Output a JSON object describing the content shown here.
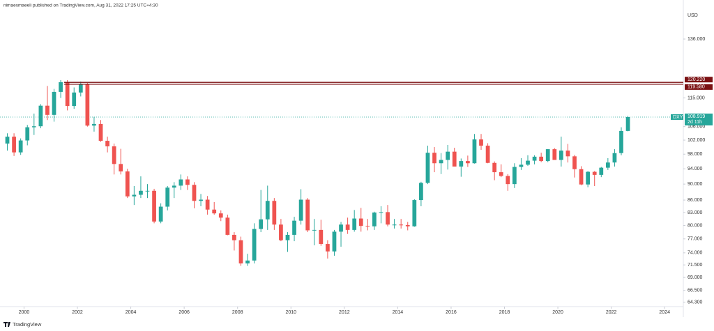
{
  "header": "nimaesmaeeli published on TradingView.com, Aug 31, 2022 17:25 UTC+4:30",
  "footer": "TradingView",
  "chart_data": {
    "type": "candlestick",
    "symbol": "DXY",
    "y_unit": "USD",
    "log_scale": true,
    "up_color": "#26a69a",
    "down_color": "#ef5350",
    "x": [
      1999.375,
      1999.625,
      1999.875,
      2000.125,
      2000.375,
      2000.625,
      2000.875,
      2001.125,
      2001.375,
      2001.625,
      2001.875,
      2002.125,
      2002.375,
      2002.625,
      2002.875,
      2003.125,
      2003.375,
      2003.625,
      2003.875,
      2004.125,
      2004.375,
      2004.625,
      2004.875,
      2005.125,
      2005.375,
      2005.625,
      2005.875,
      2006.125,
      2006.375,
      2006.625,
      2006.875,
      2007.125,
      2007.375,
      2007.625,
      2007.875,
      2008.125,
      2008.375,
      2008.625,
      2008.875,
      2009.125,
      2009.375,
      2009.625,
      2009.875,
      2010.125,
      2010.375,
      2010.625,
      2010.875,
      2011.125,
      2011.375,
      2011.625,
      2011.875,
      2012.125,
      2012.375,
      2012.625,
      2012.875,
      2013.125,
      2013.375,
      2013.625,
      2013.875,
      2014.125,
      2014.375,
      2014.625,
      2014.875,
      2015.125,
      2015.375,
      2015.625,
      2015.875,
      2016.125,
      2016.375,
      2016.625,
      2016.875,
      2017.125,
      2017.375,
      2017.625,
      2017.875,
      2018.125,
      2018.375,
      2018.625,
      2018.875,
      2019.125,
      2019.375,
      2019.625,
      2019.875,
      2020.125,
      2020.375,
      2020.625,
      2020.875,
      2021.125,
      2021.375,
      2021.625,
      2021.875,
      2022.125,
      2022.375,
      2022.625
    ],
    "open": [
      101,
      103,
      98.5,
      101.9,
      105.8,
      106.1,
      112.5,
      109.6,
      117,
      120.3,
      112.4,
      116.8,
      119.5,
      106.3,
      106.8,
      101.8,
      100.2,
      95.3,
      93.3,
      86.9,
      87.3,
      88.3,
      88.3,
      80.9,
      84.4,
      89.1,
      89.6,
      91.2,
      89.8,
      85.8,
      86.1,
      83.7,
      82.8,
      81.8,
      77.9,
      76.7,
      71.8,
      72.4,
      79.2,
      81.4,
      85.8,
      80.2,
      76.7,
      77.9,
      81.1,
      86.1,
      78.9,
      79.0,
      75.9,
      74.3,
      78.6,
      80.2,
      79.0,
      81.6,
      79.9,
      79.8,
      83.0,
      83.1,
      80.2,
      80.2,
      80.1,
      79.8,
      86.0,
      90.3,
      98.4,
      95.5,
      96.4,
      98.7,
      94.6,
      96.1,
      95.5,
      102.2,
      100.4,
      95.6,
      93.1,
      92.1,
      90.0,
      94.5,
      95.1,
      96.2,
      97.3,
      96.1,
      99.4,
      96.4,
      99.0,
      97.4,
      93.9,
      89.9,
      93.2,
      92.4,
      94.3,
      95.7,
      98.3,
      104.7
    ],
    "high": [
      104,
      104,
      102.5,
      106.5,
      110,
      113,
      119,
      118,
      121,
      121,
      118.5,
      120.5,
      120,
      109,
      108,
      103,
      101,
      99.5,
      94,
      89.5,
      92,
      90,
      88.8,
      85.2,
      89.5,
      90.5,
      92.5,
      92,
      90.5,
      87.5,
      87,
      85.5,
      83.5,
      82.5,
      78.5,
      77.5,
      73.8,
      80.5,
      88.5,
      89.6,
      86.5,
      81.5,
      78.5,
      82,
      88.7,
      86.5,
      81.5,
      81.3,
      76.7,
      79,
      80.8,
      81.8,
      83.6,
      84.1,
      81.5,
      83.2,
      84.5,
      84.8,
      81.5,
      81.5,
      80.8,
      86.2,
      90.6,
      100.4,
      100,
      98.3,
      100.6,
      99.8,
      96.8,
      97.6,
      103.8,
      103.8,
      101.1,
      96,
      95.2,
      92.6,
      95.5,
      96.9,
      97.7,
      97.7,
      98.4,
      99.4,
      99.7,
      103,
      100.9,
      97.8,
      94.7,
      93.4,
      93.4,
      94.5,
      96.9,
      99.4,
      105.8,
      109.3
    ],
    "low": [
      99,
      97.5,
      97.8,
      100.5,
      103.5,
      105.5,
      108,
      107.5,
      115,
      111,
      111.5,
      115.5,
      106,
      104.5,
      101.5,
      98.5,
      92.5,
      92.5,
      86.5,
      84.8,
      86.5,
      86.5,
      80.5,
      80.5,
      83.5,
      86.5,
      88.5,
      88.5,
      84,
      84.5,
      82.5,
      82.5,
      81,
      77.8,
      74.5,
      71.3,
      71.3,
      71.8,
      78.5,
      79,
      79,
      76.5,
      74.2,
      76.5,
      80.2,
      78.5,
      75.6,
      75.5,
      72.8,
      73.4,
      75.3,
      78.1,
      78.6,
      78.6,
      78.9,
      79,
      80.5,
      79.8,
      79.3,
      79.3,
      78.9,
      79.7,
      84.5,
      90,
      93.1,
      92.6,
      93.8,
      94.6,
      91.9,
      94.5,
      95.4,
      99.2,
      95.5,
      91,
      91.8,
      88.3,
      89,
      93.7,
      94.8,
      95.2,
      95.8,
      95.8,
      96.4,
      94.6,
      95.7,
      91.7,
      89.7,
      89.2,
      89.5,
      91.8,
      93.7,
      94.6,
      97.7,
      104.6
    ],
    "close": [
      103,
      98.5,
      101.9,
      105.8,
      106.1,
      112.5,
      109.6,
      117,
      120.3,
      112.4,
      116.8,
      119.5,
      106.3,
      106.8,
      101.8,
      100.2,
      95.3,
      93.3,
      86.9,
      87.3,
      88.3,
      88.3,
      80.9,
      84.4,
      89.1,
      89.6,
      91.2,
      89.8,
      85.8,
      86.1,
      83.7,
      82.8,
      81.8,
      77.9,
      76.7,
      71.8,
      72.4,
      79.2,
      81.4,
      85.8,
      80.2,
      76.7,
      77.9,
      81.1,
      86.1,
      78.9,
      79.0,
      75.9,
      74.3,
      78.6,
      80.2,
      79.0,
      81.6,
      79.9,
      79.8,
      83.0,
      83.1,
      80.2,
      80.2,
      80.1,
      79.8,
      86.0,
      90.3,
      98.4,
      95.5,
      96.4,
      98.7,
      94.6,
      96.1,
      95.5,
      102.2,
      100.4,
      95.6,
      93.1,
      92.1,
      90.0,
      94.5,
      95.1,
      96.2,
      97.3,
      96.1,
      99.4,
      96.4,
      99.0,
      97.4,
      93.9,
      89.9,
      93.2,
      92.4,
      94.3,
      95.7,
      98.3,
      104.7,
      108.919
    ],
    "xlim": [
      1999.1,
      2024.7
    ],
    "xticks": [
      2000,
      2002,
      2004,
      2006,
      2008,
      2010,
      2012,
      2014,
      2016,
      2018,
      2020,
      2022,
      2024
    ],
    "ylim": [
      63.5,
      149
    ],
    "yticks": [
      {
        "value": 136,
        "label": "136.000"
      },
      {
        "value": 115,
        "label": "115.000"
      },
      {
        "value": 106,
        "label": "106.000"
      },
      {
        "value": 102,
        "label": "102.000"
      },
      {
        "value": 98,
        "label": "98.000"
      },
      {
        "value": 94,
        "label": "94.000"
      },
      {
        "value": 90,
        "label": "90.000"
      },
      {
        "value": 86,
        "label": "86.000"
      },
      {
        "value": 83,
        "label": "83.000"
      },
      {
        "value": 80,
        "label": "80.000"
      },
      {
        "value": 77,
        "label": "77.000"
      },
      {
        "value": 74,
        "label": "74.000"
      },
      {
        "value": 71.5,
        "label": "71.500"
      },
      {
        "value": 69,
        "label": "69.000"
      },
      {
        "value": 66.5,
        "label": "66.500"
      },
      {
        "value": 64.3,
        "label": "64.300"
      }
    ],
    "levels": [
      {
        "value": 120.22,
        "label": "120.220",
        "color": "#7b1113"
      },
      {
        "value": 119.58,
        "label": "119.580",
        "color": "#7b1113"
      }
    ],
    "last_price": {
      "value": 108.919,
      "label": "108.919",
      "color": "#26a69a"
    },
    "countdown": "2d 11h"
  }
}
